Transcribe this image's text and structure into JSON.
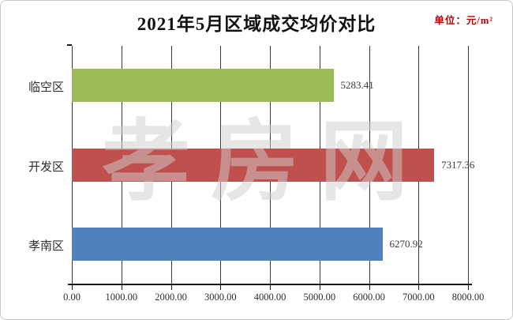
{
  "header": {
    "title": "2021年5月区域成交均价对比",
    "unit_label": "单位：元/m²"
  },
  "watermark_text": "孝房网",
  "colors": {
    "unit_text": "#c00000",
    "axis": "#1a1a1a",
    "gridline": "#3a3a3a",
    "green_bar": "#9bbb59",
    "red_bar": "#c0504d",
    "blue_bar": "#4f81bd"
  },
  "chart_data": {
    "type": "bar",
    "orientation": "horizontal",
    "title": "2021年5月区域成交均价对比",
    "unit": "元/m²",
    "categories": [
      "临空区",
      "开发区",
      "孝南区"
    ],
    "values": [
      5283.41,
      7317.36,
      6270.92
    ],
    "value_labels": [
      "5283.41",
      "7317.36",
      "6270.92"
    ],
    "bar_colors": [
      "#9bbb59",
      "#c0504d",
      "#4f81bd"
    ],
    "xlim": [
      0,
      8000
    ],
    "x_tick_step": 1000,
    "x_tick_labels": [
      "0.00",
      "1000.00",
      "2000.00",
      "3000.00",
      "4000.00",
      "5000.00",
      "6000.00",
      "7000.00",
      "8000.00"
    ],
    "grid": true,
    "legend_position": "none"
  }
}
